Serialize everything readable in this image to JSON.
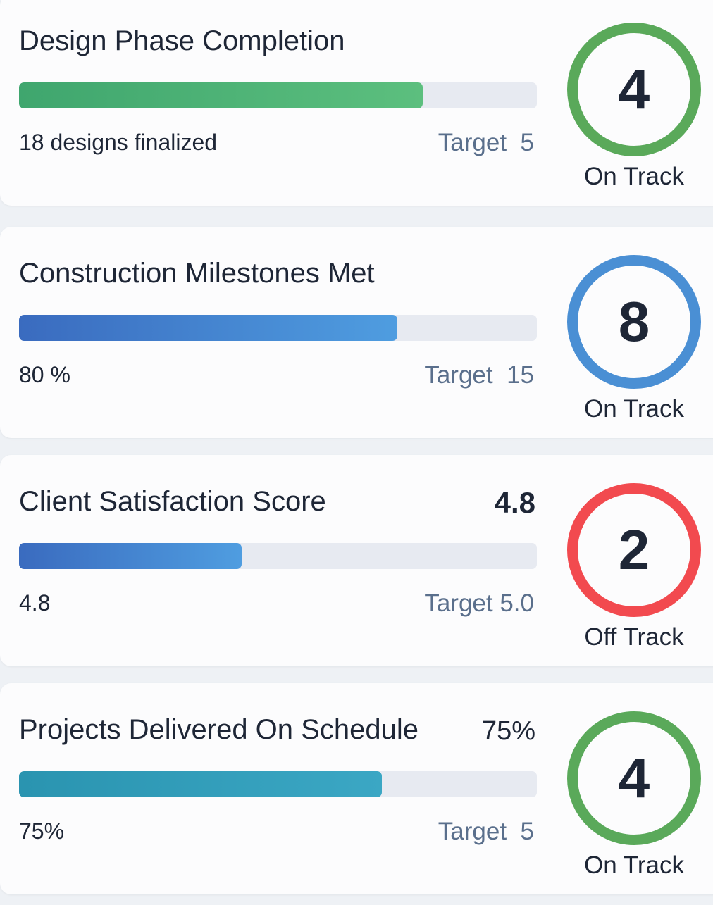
{
  "cards": [
    {
      "title": "Design Phase Completion",
      "title_value": "",
      "left_label": "18 designs finalized",
      "target": "Target  5",
      "progress_percent": 78,
      "score": "4",
      "status": "On Track",
      "bar_colors": [
        "#3fa66e",
        "#5cbf7e"
      ],
      "ring_color": "#5aa95a"
    },
    {
      "title": "Construction Milestones Met",
      "title_value": "",
      "left_label": "80 %",
      "target": "Target  15",
      "progress_percent": 73,
      "score": "8",
      "status": "On Track",
      "bar_colors": [
        "#3a6bbf",
        "#4f9de0"
      ],
      "ring_color": "#4a8fd4"
    },
    {
      "title": "Client Satisfaction Score",
      "title_value": "4.8",
      "left_label": "4.8",
      "target": "Target 5.0",
      "progress_percent": 43,
      "score": "2",
      "status": "Off Track",
      "bar_colors": [
        "#3a6bbf",
        "#4f9de0"
      ],
      "ring_color": "#f24a4f"
    },
    {
      "title": "Projects Delivered On Schedule",
      "title_value": "75%",
      "left_label": "75%",
      "target": "Target  5",
      "progress_percent": 70,
      "score": "4",
      "status": "On Track",
      "bar_colors": [
        "#2a94b0",
        "#3ba7c4"
      ],
      "ring_color": "#5aa95a"
    }
  ]
}
